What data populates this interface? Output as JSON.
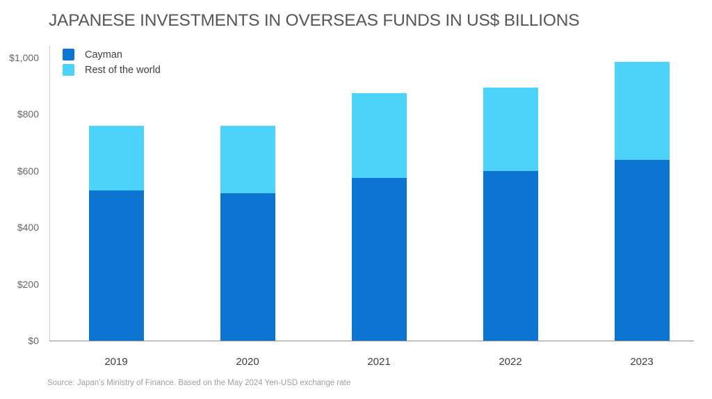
{
  "title": "JAPANESE INVESTMENTS IN OVERSEAS FUNDS IN US$ BILLIONS",
  "source": "Source: Japan's Ministry of Finance. Based on the May 2024 Yen-USD exchange rate",
  "colors": {
    "cayman": "#0b75d1",
    "rest_of_world": "#4dd2fa",
    "title_text": "#55565a",
    "axis_text": "#63666b",
    "category_text": "#3c4043",
    "source_text": "#9aa0a6"
  },
  "chart_data": {
    "type": "bar",
    "stacked": true,
    "title": "JAPANESE INVESTMENTS IN OVERSEAS FUNDS IN US$ BILLIONS",
    "categories": [
      "2019",
      "2020",
      "2021",
      "2022",
      "2023"
    ],
    "series": [
      {
        "name": "Cayman",
        "color": "#0b75d1",
        "values": [
          530,
          520,
          575,
          600,
          640
        ]
      },
      {
        "name": "Rest of the world",
        "color": "#4dd2fa",
        "values": [
          230,
          240,
          300,
          295,
          345
        ]
      }
    ],
    "totals": [
      760,
      760,
      875,
      895,
      985
    ],
    "xlabel": "",
    "ylabel": "US$ billions",
    "ylim": [
      0,
      1000
    ],
    "yticks": [
      {
        "value": 0,
        "label": "$0"
      },
      {
        "value": 200,
        "label": "$200"
      },
      {
        "value": 400,
        "label": "$400"
      },
      {
        "value": 600,
        "label": "$600"
      },
      {
        "value": 800,
        "label": "$800"
      },
      {
        "value": 1000,
        "label": "$1,000"
      }
    ],
    "grid": false,
    "legend_position": "top-left"
  }
}
